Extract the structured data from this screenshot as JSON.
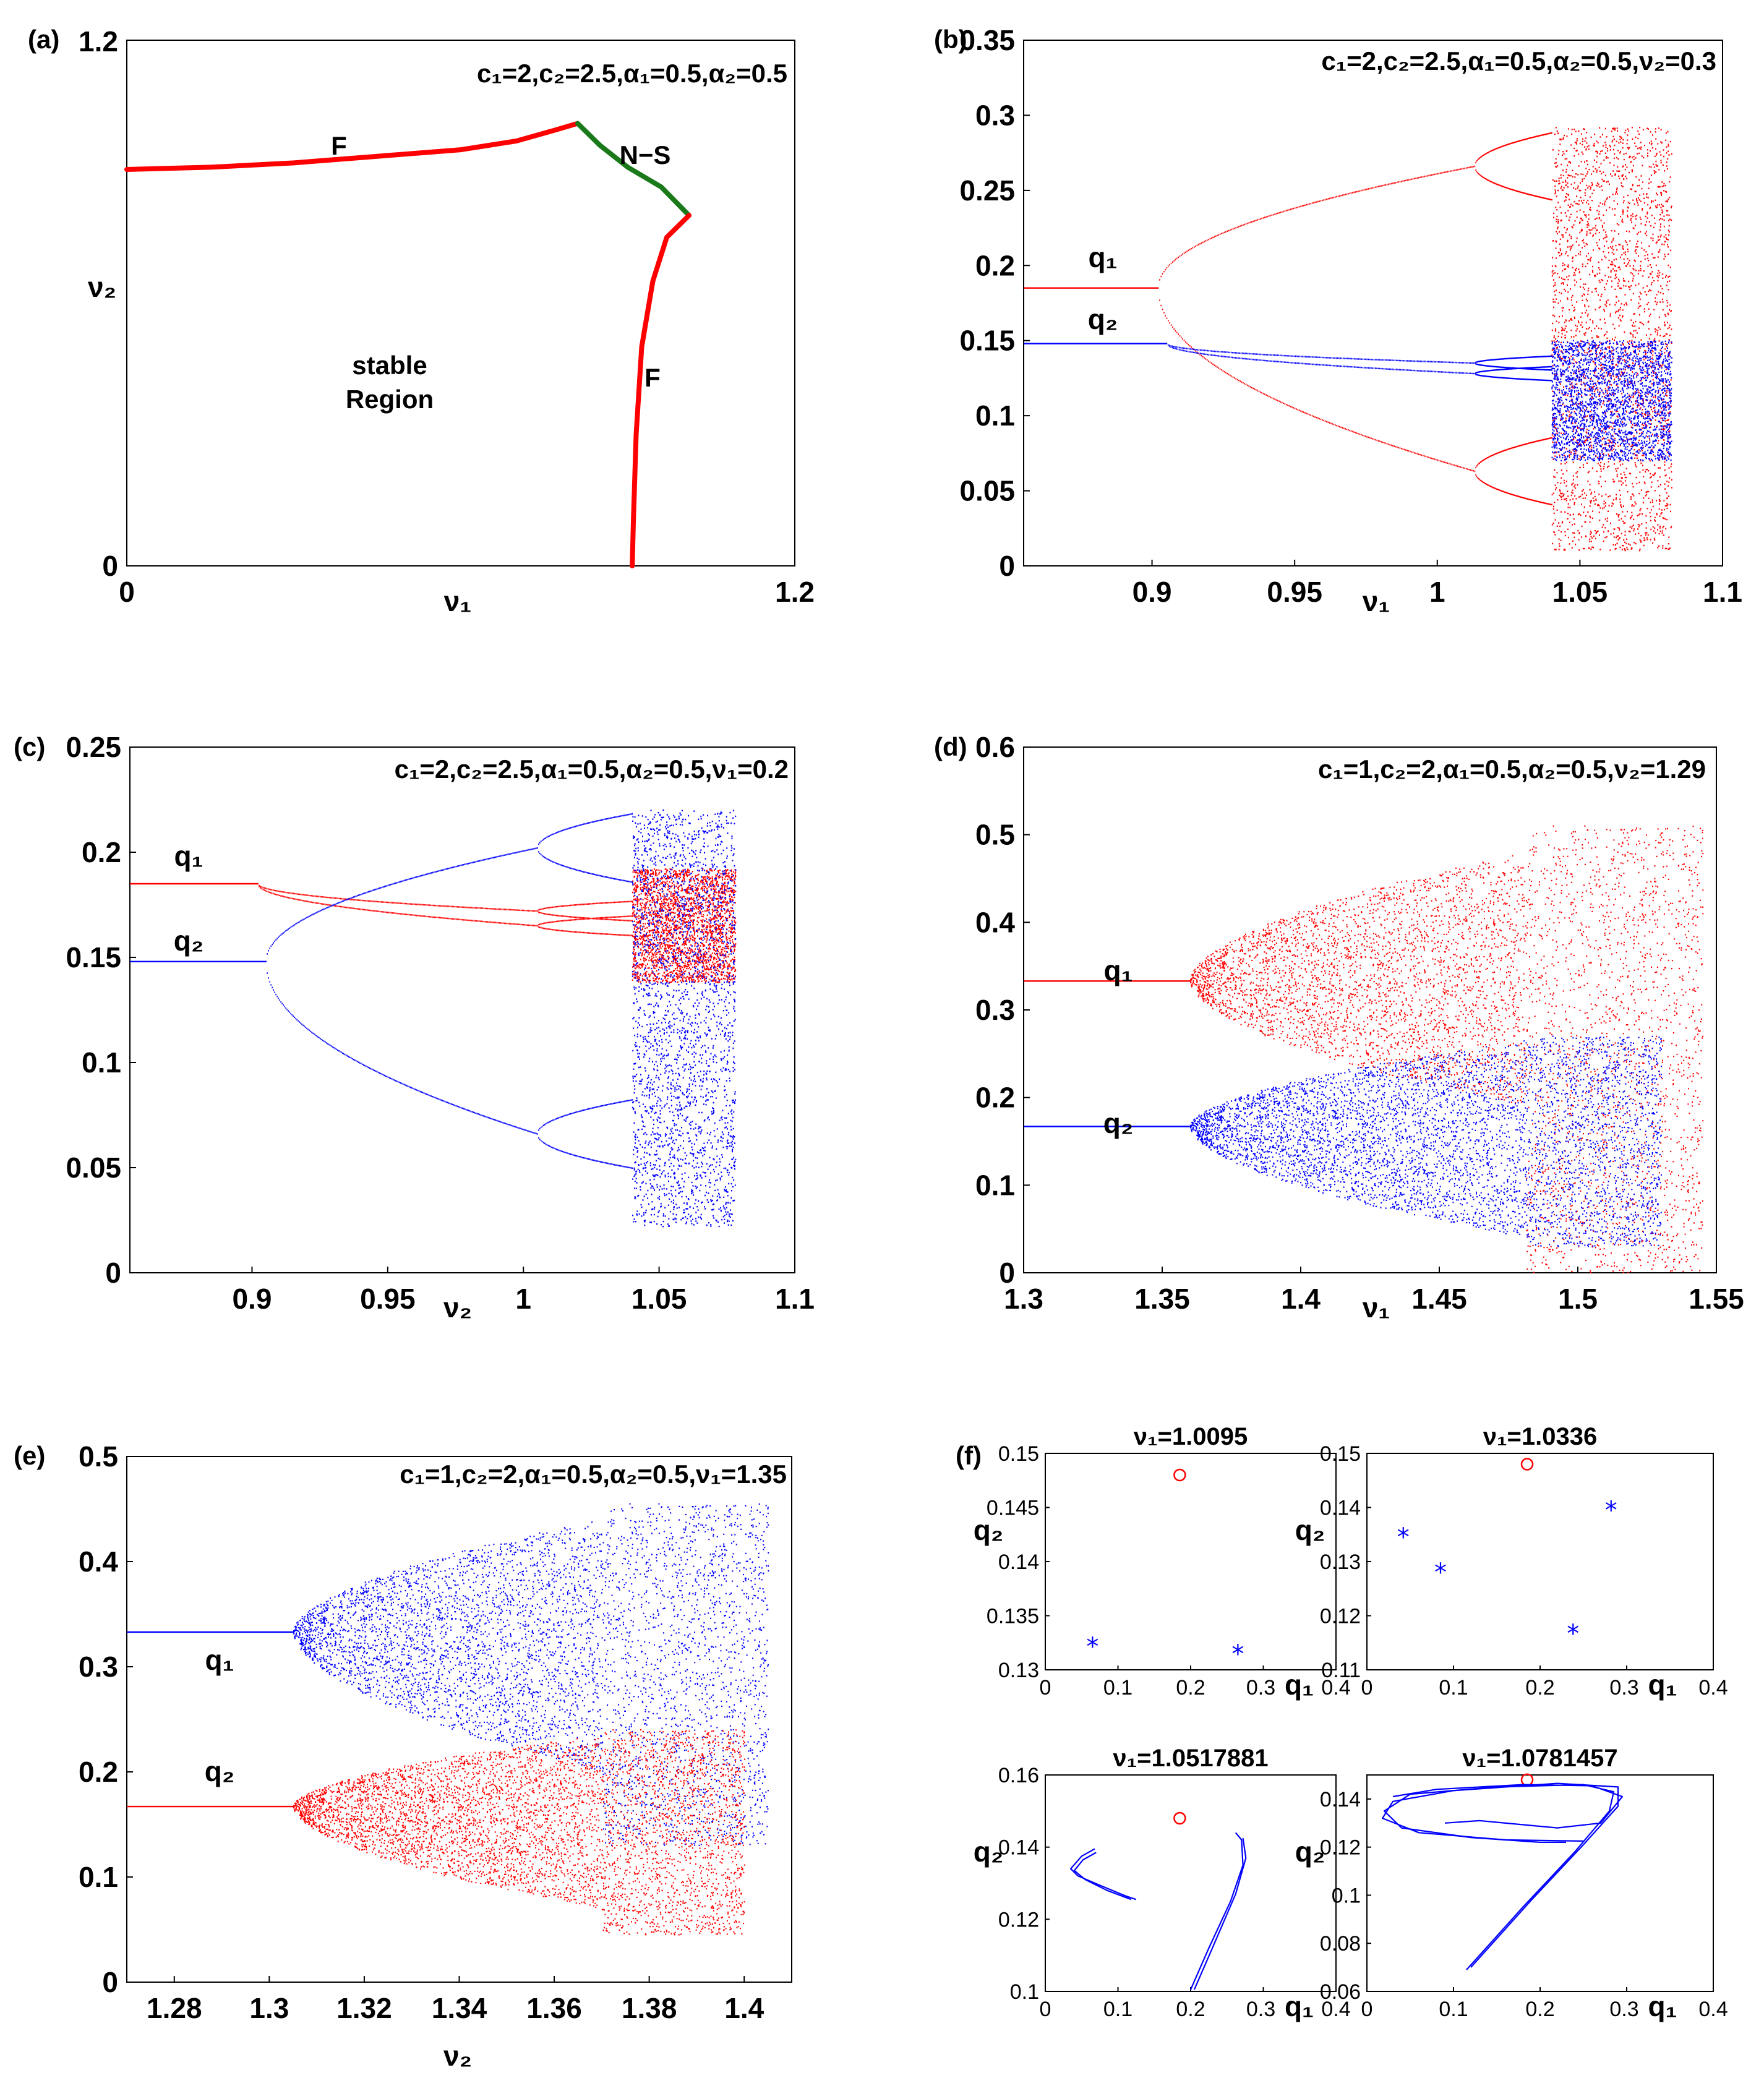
{
  "figure": {
    "colors": {
      "red": "#ff0000",
      "blue": "#0000ff",
      "green": "#1a7a1a",
      "black": "#000000"
    }
  },
  "chart_data": [
    {
      "id": "a",
      "type": "line",
      "panel_label": "(a)",
      "annotation": "c₁=2,c₂=2.5,α₁=0.5,α₂=0.5",
      "xlabel": "ν₁",
      "ylabel": "ν₂",
      "xlim": [
        0,
        1.2
      ],
      "ylim": [
        0,
        1.2
      ],
      "xticks": [
        "0",
        "1.2"
      ],
      "yticks": [
        "0",
        "1.2"
      ],
      "text_labels": [
        "F",
        "N−S",
        "F",
        "stable",
        "Region"
      ],
      "series": [
        {
          "name": "flip-left",
          "color": "#ff0000",
          "points": [
            [
              0,
              0.905
            ],
            [
              0.15,
              0.91
            ],
            [
              0.3,
              0.92
            ],
            [
              0.45,
              0.935
            ],
            [
              0.6,
              0.95
            ],
            [
              0.7,
              0.97
            ],
            [
              0.77,
              0.995
            ],
            [
              0.81,
              1.01
            ]
          ]
        },
        {
          "name": "neimark-sacker",
          "color": "#1a7a1a",
          "points": [
            [
              0.81,
              1.01
            ],
            [
              0.85,
              0.96
            ],
            [
              0.9,
              0.91
            ],
            [
              0.96,
              0.865
            ],
            [
              1.01,
              0.8
            ]
          ]
        },
        {
          "name": "flip-right",
          "color": "#ff0000",
          "points": [
            [
              1.01,
              0.8
            ],
            [
              0.97,
              0.75
            ],
            [
              0.945,
              0.65
            ],
            [
              0.925,
              0.5
            ],
            [
              0.915,
              0.3
            ],
            [
              0.91,
              0.1
            ],
            [
              0.908,
              0.0
            ]
          ]
        }
      ]
    },
    {
      "id": "b",
      "type": "scatter",
      "panel_label": "(b)",
      "annotation": "c₁=2,c₂=2.5,α₁=0.5,α₂=0.5,ν₂=0.3",
      "xlabel": "ν₁",
      "ylabel": "",
      "xlim": [
        0.855,
        1.1
      ],
      "ylim": [
        0,
        0.35
      ],
      "xticks": [
        0.9,
        0.95,
        1,
        1.05,
        1.1
      ],
      "xtick_labels": [
        "0.9",
        "0.95",
        "1",
        "1.05",
        "1.1"
      ],
      "yticks": [
        0,
        0.05,
        0.1,
        0.15,
        0.2,
        0.25,
        0.3,
        0.35
      ],
      "ytick_labels": [
        "0",
        "0.05",
        "0.1",
        "0.15",
        "0.2",
        "0.25",
        "0.3",
        "0.35"
      ],
      "series": [
        {
          "name": "q₁",
          "color": "#ff0000",
          "fixed": 0.185,
          "flip": 0.902,
          "upper_end": 0.266,
          "lower_end": 0.063,
          "p2": 1.013,
          "chaos": 1.04,
          "end": 1.082,
          "chaos_range": [
            0.01,
            0.292
          ]
        },
        {
          "name": "q₂",
          "color": "#0000ff",
          "fixed": 0.148,
          "flip": 0.905,
          "upper_end": 0.135,
          "lower_end": 0.128,
          "p2": 1.013,
          "chaos": 1.04,
          "end": 1.082,
          "chaos_range": [
            0.07,
            0.15
          ]
        }
      ],
      "series_labels": [
        "q₁",
        "q₂"
      ]
    },
    {
      "id": "c",
      "type": "scatter",
      "panel_label": "(c)",
      "annotation": "c₁=2,c₂=2.5,α₁=0.5,α₂=0.5,ν₁=0.2",
      "xlabel": "ν₂",
      "ylabel": "",
      "xlim": [
        0.855,
        1.1
      ],
      "ylim": [
        0,
        0.25
      ],
      "xticks": [
        0.9,
        0.95,
        1,
        1.05,
        1.1
      ],
      "xtick_labels": [
        "0.9",
        "0.95",
        "1",
        "1.05",
        "1.1"
      ],
      "yticks": [
        0,
        0.05,
        0.1,
        0.15,
        0.2,
        0.25
      ],
      "ytick_labels": [
        "0",
        "0.05",
        "0.1",
        "0.15",
        "0.2",
        "0.25"
      ],
      "series": [
        {
          "name": "q₁",
          "color": "#ff0000",
          "fixed": 0.185,
          "flip": 0.902,
          "upper_end": 0.172,
          "lower_end": 0.165,
          "p2": 1.005,
          "chaos": 1.04,
          "end": 1.078,
          "chaos_range": [
            0.138,
            0.192
          ]
        },
        {
          "name": "q₂",
          "color": "#0000ff",
          "fixed": 0.148,
          "flip": 0.905,
          "upper_end": 0.202,
          "lower_end": 0.066,
          "p2": 1.005,
          "chaos": 1.04,
          "end": 1.078,
          "chaos_range": [
            0.022,
            0.22
          ]
        }
      ],
      "series_labels": [
        "q₁",
        "q₂"
      ]
    },
    {
      "id": "d",
      "type": "scatter",
      "panel_label": "(d)",
      "annotation": "c₁=1,c₂=2,α₁=0.5,α₂=0.5,ν₂=1.29",
      "xlabel": "ν₁",
      "ylabel": "",
      "xlim": [
        1.3,
        1.55
      ],
      "ylim": [
        0,
        0.6
      ],
      "xticks": [
        1.3,
        1.35,
        1.4,
        1.45,
        1.5,
        1.55
      ],
      "xtick_labels": [
        "1.3",
        "1.35",
        "1.4",
        "1.45",
        "1.5",
        "1.55"
      ],
      "yticks": [
        0,
        0.1,
        0.2,
        0.3,
        0.4,
        0.5,
        0.6
      ],
      "ytick_labels": [
        "0",
        "0.1",
        "0.2",
        "0.3",
        "0.4",
        "0.5",
        "0.6"
      ],
      "series": [
        {
          "name": "q₁",
          "color": "#ff0000",
          "fixed": 0.333,
          "onset": 1.36,
          "band_end": [
            0.19,
            0.48
          ],
          "end": 1.545,
          "chaos_range": [
            0.0,
            0.51
          ]
        },
        {
          "name": "q₂",
          "color": "#0000ff",
          "fixed": 0.167,
          "onset": 1.36,
          "band_end": [
            0.04,
            0.265
          ],
          "end": 1.53,
          "chaos_range": [
            0.03,
            0.27
          ]
        }
      ],
      "series_labels": [
        "q₁",
        "q₂"
      ]
    },
    {
      "id": "e",
      "type": "scatter",
      "panel_label": "(e)",
      "annotation": "c₁=1,c₂=2,α₁=0.5,α₂=0.5,ν₁=1.35",
      "xlabel": "ν₂",
      "ylabel": "",
      "xlim": [
        1.27,
        1.41
      ],
      "ylim": [
        0,
        0.5
      ],
      "xticks": [
        1.28,
        1.3,
        1.32,
        1.34,
        1.36,
        1.38,
        1.4
      ],
      "xtick_labels": [
        "1.28",
        "1.3",
        "1.32",
        "1.34",
        "1.36",
        "1.38",
        "1.4"
      ],
      "yticks": [
        0,
        0.1,
        0.2,
        0.3,
        0.4,
        0.5
      ],
      "ytick_labels": [
        "0",
        "0.1",
        "0.2",
        "0.3",
        "0.4",
        "0.5"
      ],
      "series": [
        {
          "name": "q₁",
          "color": "#0000ff",
          "fixed": 0.333,
          "onset": 1.305,
          "band_end": [
            0.2,
            0.44
          ],
          "end": 1.405,
          "chaos_range": [
            0.13,
            0.455
          ]
        },
        {
          "name": "q₂",
          "color": "#ff0000",
          "fixed": 0.167,
          "onset": 1.305,
          "band_end": [
            0.07,
            0.235
          ],
          "end": 1.4,
          "chaos_range": [
            0.045,
            0.24
          ]
        }
      ],
      "series_labels": [
        "q₁",
        "q₂"
      ]
    },
    {
      "id": "f",
      "type": "scatter",
      "panel_label": "(f)",
      "xlabel": "q₁",
      "ylabel": "q₂",
      "subplots": [
        {
          "title": "ν₁=1.0095",
          "xlim": [
            0,
            0.4
          ],
          "ylim": [
            0.13,
            0.15
          ],
          "xtick_labels": [
            "0",
            "0.1",
            "0.2",
            "0.3",
            "0.4"
          ],
          "yticks": [
            0.13,
            0.135,
            0.14,
            0.145,
            0.15
          ],
          "ytick_labels": [
            "0.13",
            "0.135",
            "0.14",
            "0.145",
            "0.15"
          ],
          "fixed_point": [
            0.185,
            0.148
          ],
          "stars": [
            [
              0.065,
              0.1323
            ],
            [
              0.265,
              0.1316
            ]
          ],
          "curves": []
        },
        {
          "title": "ν₁=1.0336",
          "xlim": [
            0,
            0.4
          ],
          "ylim": [
            0.11,
            0.15
          ],
          "xtick_labels": [
            "0",
            "0.1",
            "0.2",
            "0.3",
            "0.4"
          ],
          "yticks": [
            0.11,
            0.12,
            0.13,
            0.14,
            0.15
          ],
          "ytick_labels": [
            "0.11",
            "0.12",
            "0.13",
            "0.14",
            "0.15"
          ],
          "fixed_point": [
            0.185,
            0.148
          ],
          "stars": [
            [
              0.042,
              0.1348
            ],
            [
              0.085,
              0.1283
            ],
            [
              0.238,
              0.117
            ],
            [
              0.282,
              0.1398
            ]
          ],
          "curves": []
        },
        {
          "title": "ν₁=1.0517881",
          "xlim": [
            0,
            0.4
          ],
          "ylim": [
            0.1,
            0.16
          ],
          "xtick_labels": [
            "0",
            "0.1",
            "0.2",
            "0.3",
            "0.4"
          ],
          "yticks": [
            0.1,
            0.12,
            0.14,
            0.16
          ],
          "ytick_labels": [
            "0.1",
            "0.12",
            "0.14",
            "0.16"
          ],
          "fixed_point": [
            0.185,
            0.148
          ],
          "stars": [],
          "curves": [
            [
              [
                0.068,
                0.1395
              ],
              [
                0.05,
                0.1375
              ],
              [
                0.035,
                0.134
              ],
              [
                0.045,
                0.132
              ],
              [
                0.08,
                0.129
              ],
              [
                0.11,
                0.1265
              ],
              [
                0.125,
                0.1255
              ]
            ],
            [
              [
                0.07,
                0.1385
              ],
              [
                0.052,
                0.1365
              ],
              [
                0.04,
                0.1335
              ],
              [
                0.055,
                0.131
              ],
              [
                0.085,
                0.128
              ],
              [
                0.118,
                0.1255
              ]
            ],
            [
              [
                0.2,
                0.1005
              ],
              [
                0.225,
                0.112
              ],
              [
                0.255,
                0.125
              ],
              [
                0.272,
                0.135
              ],
              [
                0.27,
                0.142
              ],
              [
                0.262,
                0.144
              ]
            ],
            [
              [
                0.205,
                0.1005
              ],
              [
                0.232,
                0.113
              ],
              [
                0.262,
                0.127
              ],
              [
                0.276,
                0.137
              ],
              [
                0.272,
                0.1425
              ]
            ]
          ]
        },
        {
          "title": "ν₁=1.0781457",
          "xlim": [
            0,
            0.4
          ],
          "ylim": [
            0.06,
            0.15
          ],
          "xtick_labels": [
            "0",
            "0.1",
            "0.2",
            "0.3",
            "0.4"
          ],
          "yticks": [
            0.06,
            0.08,
            0.1,
            0.12,
            0.14
          ],
          "ytick_labels": [
            "0.06",
            "0.08",
            "0.1",
            "0.12",
            "0.14"
          ],
          "fixed_point": [
            0.185,
            0.148
          ],
          "stars": [],
          "curves": [
            [
              [
                0.115,
                0.069
              ],
              [
                0.18,
                0.095
              ],
              [
                0.24,
                0.118
              ],
              [
                0.28,
                0.135
              ],
              [
                0.285,
                0.143
              ],
              [
                0.25,
                0.146
              ],
              [
                0.15,
                0.145
              ],
              [
                0.05,
                0.142
              ],
              [
                0.02,
                0.135
              ],
              [
                0.04,
                0.128
              ],
              [
                0.12,
                0.124
              ],
              [
                0.2,
                0.122
              ],
              [
                0.23,
                0.122
              ]
            ],
            [
              [
                0.12,
                0.07
              ],
              [
                0.19,
                0.098
              ],
              [
                0.25,
                0.121
              ],
              [
                0.29,
                0.137
              ],
              [
                0.29,
                0.145
              ],
              [
                0.22,
                0.1465
              ],
              [
                0.1,
                0.1435
              ],
              [
                0.03,
                0.139
              ],
              [
                0.018,
                0.132
              ],
              [
                0.06,
                0.126
              ],
              [
                0.16,
                0.123
              ],
              [
                0.25,
                0.1225
              ]
            ],
            [
              [
                0.03,
                0.141
              ],
              [
                0.08,
                0.144
              ],
              [
                0.18,
                0.146
              ],
              [
                0.26,
                0.1455
              ],
              [
                0.295,
                0.141
              ],
              [
                0.27,
                0.13
              ],
              [
                0.22,
                0.128
              ],
              [
                0.13,
                0.131
              ],
              [
                0.09,
                0.13
              ]
            ]
          ]
        }
      ]
    }
  ]
}
